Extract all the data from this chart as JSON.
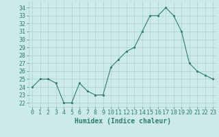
{
  "hours": [
    0,
    1,
    2,
    3,
    4,
    5,
    6,
    7,
    8,
    9,
    10,
    11,
    12,
    13,
    14,
    15,
    16,
    17,
    18,
    19,
    20,
    21,
    22,
    23
  ],
  "values": [
    24,
    25,
    25,
    24.5,
    22,
    22,
    24.5,
    23.5,
    23,
    23,
    26.5,
    27.5,
    28.5,
    29,
    31,
    33,
    33,
    34,
    33,
    31,
    27,
    26,
    25.5,
    25
  ],
  "xlabel": "Humidex (Indice chaleur)",
  "ylim": [
    21.5,
    34.8
  ],
  "xlim": [
    -0.5,
    23.5
  ],
  "yticks": [
    22,
    23,
    24,
    25,
    26,
    27,
    28,
    29,
    30,
    31,
    32,
    33,
    34
  ],
  "xticks": [
    0,
    1,
    2,
    3,
    4,
    5,
    6,
    7,
    8,
    9,
    10,
    11,
    12,
    13,
    14,
    15,
    16,
    17,
    18,
    19,
    20,
    21,
    22,
    23
  ],
  "line_color": "#2e7d6e",
  "marker": ".",
  "bg_color": "#cceaea",
  "grid_color": "#aacfcf",
  "tick_label_color": "#2e7d6e",
  "xlabel_color": "#2e7d6e",
  "font_family": "monospace",
  "xlabel_fontsize": 7,
  "tick_fontsize": 6
}
